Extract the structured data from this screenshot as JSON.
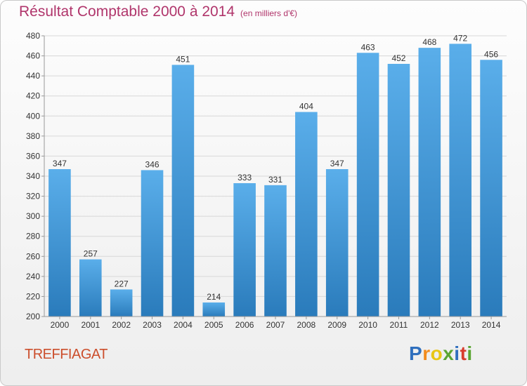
{
  "title": "Résultat Comptable 2000 à 2014",
  "subtitle": "(en milliers d'€)",
  "commune": "TREFFIAGAT",
  "logo": {
    "letters": [
      "P",
      "r",
      "o",
      "x",
      "i",
      "t",
      "i"
    ],
    "colors": [
      "#2f6fbd",
      "#f28c1e",
      "#e8c614",
      "#5aa532",
      "#2f6fbd",
      "#d83c2d",
      "#5aa532"
    ]
  },
  "colors": {
    "bar_top": "#5aaeea",
    "bar_bottom": "#2a7bbb",
    "title": "#b0356b",
    "commune": "#cc4e2c"
  },
  "chart_data": {
    "type": "bar",
    "categories": [
      "2000",
      "2001",
      "2002",
      "2003",
      "2004",
      "2005",
      "2006",
      "2007",
      "2008",
      "2009",
      "2010",
      "2011",
      "2012",
      "2013",
      "2014"
    ],
    "values": [
      347,
      257,
      227,
      346,
      451,
      214,
      333,
      331,
      404,
      347,
      463,
      452,
      468,
      472,
      456
    ],
    "ylim": [
      200,
      480
    ],
    "yticks": [
      200,
      220,
      240,
      260,
      280,
      300,
      320,
      340,
      360,
      380,
      400,
      420,
      440,
      460,
      480
    ],
    "grid": true,
    "xlabel": "",
    "ylabel": ""
  }
}
